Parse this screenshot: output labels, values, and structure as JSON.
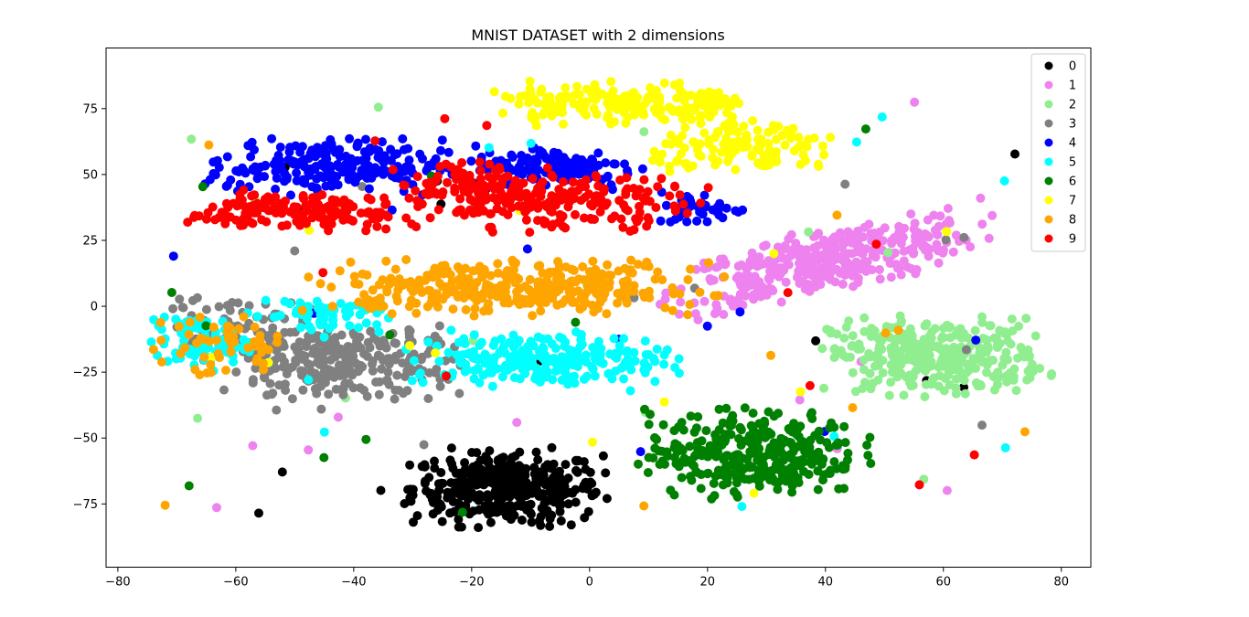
{
  "chart_data": {
    "type": "scatter",
    "title": "MNIST DATASET with 2 dimensions",
    "xlabel": "",
    "ylabel": "",
    "xlim": [
      -82,
      85
    ],
    "ylim": [
      -99,
      98
    ],
    "xticks": [
      -80,
      -60,
      -40,
      -20,
      0,
      20,
      40,
      60,
      80
    ],
    "yticks": [
      -75,
      -50,
      -25,
      0,
      25,
      50,
      75
    ],
    "xtick_labels": [
      "−80",
      "−60",
      "−40",
      "−20",
      "0",
      "20",
      "40",
      "60",
      "80"
    ],
    "ytick_labels": [
      "−75",
      "−50",
      "−25",
      "0",
      "25",
      "50",
      "75"
    ],
    "grid": false,
    "legend_position": "top-right",
    "series": [
      {
        "name": "0",
        "color": "#000000",
        "clusters": [
          {
            "cx": -14,
            "cy": -69,
            "sx": 8,
            "sy": 7,
            "n": 380
          }
        ]
      },
      {
        "name": "1",
        "color": "#ee82ee",
        "clusters": [
          {
            "cx": 40,
            "cy": 17,
            "sx": 13,
            "sy": 6,
            "n": 380,
            "slope": 0.45
          }
        ]
      },
      {
        "name": "2",
        "color": "#90ee90",
        "clusters": [
          {
            "cx": 59,
            "cy": -19,
            "sx": 9,
            "sy": 7,
            "n": 330
          }
        ]
      },
      {
        "name": "3",
        "color": "#808080",
        "clusters": [
          {
            "cx": -42,
            "cy": -22,
            "sx": 10,
            "sy": 8,
            "n": 260
          },
          {
            "cx": -60,
            "cy": -8,
            "sx": 6,
            "sy": 6,
            "n": 80
          }
        ]
      },
      {
        "name": "4",
        "color": "#0000ff",
        "clusters": [
          {
            "cx": -45,
            "cy": 53,
            "sx": 10,
            "sy": 5,
            "n": 220
          },
          {
            "cx": -6,
            "cy": 53,
            "sx": 7,
            "sy": 4,
            "n": 130
          },
          {
            "cx": 19,
            "cy": 37,
            "sx": 4,
            "sy": 3,
            "n": 40
          }
        ]
      },
      {
        "name": "5",
        "color": "#00ffff",
        "clusters": [
          {
            "cx": -8,
            "cy": -20,
            "sx": 11,
            "sy": 5,
            "n": 230
          },
          {
            "cx": -66,
            "cy": -14,
            "sx": 4,
            "sy": 5,
            "n": 70
          },
          {
            "cx": -46,
            "cy": -3,
            "sx": 6,
            "sy": 4,
            "n": 60
          }
        ]
      },
      {
        "name": "6",
        "color": "#008000",
        "clusters": [
          {
            "cx": 28,
            "cy": -56,
            "sx": 9,
            "sy": 8,
            "n": 330
          }
        ]
      },
      {
        "name": "7",
        "color": "#ffff00",
        "clusters": [
          {
            "cx": 6,
            "cy": 77,
            "sx": 11,
            "sy": 4,
            "n": 190
          },
          {
            "cx": 27,
            "cy": 60,
            "sx": 8,
            "sy": 5,
            "n": 130
          }
        ]
      },
      {
        "name": "8",
        "color": "#ffa500",
        "clusters": [
          {
            "cx": -13,
            "cy": 7,
            "sx": 17,
            "sy": 5,
            "n": 360
          },
          {
            "cx": -63,
            "cy": -15,
            "sx": 6,
            "sy": 6,
            "n": 50
          }
        ]
      },
      {
        "name": "9",
        "color": "#ff0000",
        "clusters": [
          {
            "cx": -48,
            "cy": 36,
            "sx": 10,
            "sy": 4,
            "n": 160
          },
          {
            "cx": -6,
            "cy": 39,
            "sx": 12,
            "sy": 5,
            "n": 200
          },
          {
            "cx": -18,
            "cy": 47,
            "sx": 7,
            "sy": 4,
            "n": 70
          }
        ]
      }
    ]
  }
}
